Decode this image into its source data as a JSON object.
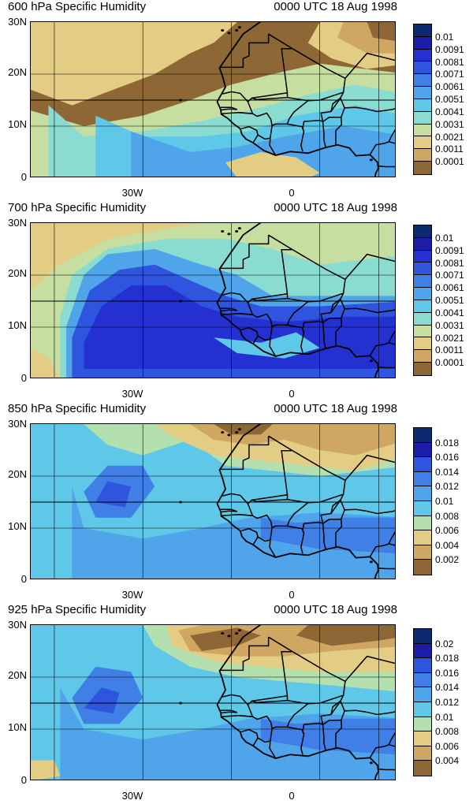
{
  "panels": [
    {
      "title": "600 hPa Specific Humidity",
      "time": "0000 UTC 18 Aug 1998",
      "levels": [
        "0.01",
        "0.0091",
        "0.0081",
        "0.0071",
        "0.0061",
        "0.0051",
        "0.0041",
        "0.0031",
        "0.0021",
        "0.0011",
        "0.0001"
      ],
      "colors": [
        "#0c2a70",
        "#1c1ca8",
        "#2430d0",
        "#2f55de",
        "#3f7fe6",
        "#4fa4ea",
        "#5fc8e8",
        "#8adcd0",
        "#c6dfa0",
        "#e3cc84",
        "#cfa763",
        "#8d6836"
      ],
      "regime": "dry"
    },
    {
      "title": "700 hPa Specific Humidity",
      "time": "0000 UTC 18 Aug 1998",
      "levels": [
        "0.01",
        "0.0091",
        "0.0081",
        "0.0071",
        "0.0061",
        "0.0051",
        "0.0041",
        "0.0031",
        "0.0021",
        "0.0011",
        "0.0001"
      ],
      "colors": [
        "#0c2a70",
        "#1c1ca8",
        "#2430d0",
        "#2f55de",
        "#3f7fe6",
        "#4fa4ea",
        "#5fc8e8",
        "#8adcd0",
        "#c6dfa0",
        "#e3cc84",
        "#cfa763",
        "#8d6836"
      ],
      "regime": "moist"
    },
    {
      "title": "850 hPa Specific Humidity",
      "time": "0000 UTC 18 Aug 1998",
      "levels": [
        "0.018",
        "0.016",
        "0.014",
        "0.012",
        "0.01",
        "0.008",
        "0.006",
        "0.004",
        "0.002"
      ],
      "colors": [
        "#0c2a70",
        "#1c1ca8",
        "#2f55de",
        "#3f7fe6",
        "#4fa4ea",
        "#5fc8e8",
        "#b4e0b0",
        "#e3cc84",
        "#cfa763",
        "#8d6836"
      ],
      "regime": "mid"
    },
    {
      "title": "925 hPa Specific Humidity",
      "time": "0000 UTC 18 Aug 1998",
      "levels": [
        "0.02",
        "0.018",
        "0.016",
        "0.014",
        "0.012",
        "0.01",
        "0.008",
        "0.006",
        "0.004"
      ],
      "colors": [
        "#0c2a70",
        "#1c1ca8",
        "#2f55de",
        "#3f7fe6",
        "#4fa4ea",
        "#5fc8e8",
        "#b4e0b0",
        "#e3cc84",
        "#cfa763",
        "#8d6836"
      ],
      "regime": "low"
    }
  ],
  "axes": {
    "y_ticks": [
      "30N",
      "20N",
      "10N",
      "0"
    ],
    "x_ticks": [
      "30W",
      "0"
    ]
  }
}
